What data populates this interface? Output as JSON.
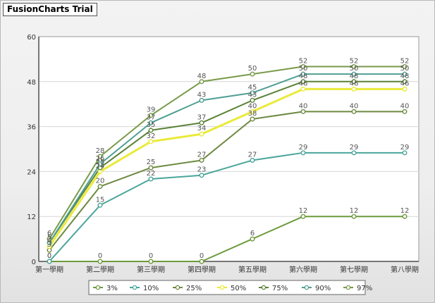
{
  "watermark": "FusionCharts Trial",
  "colors": {
    "plot_bg": "#ffffff",
    "grid": "#d6d6d6",
    "axis": "#777777",
    "highlight_series": "#e8e840"
  },
  "chart_data": {
    "type": "line",
    "title": "",
    "xlabel": "",
    "ylabel": "",
    "ylim": [
      0,
      60
    ],
    "y_ticks": [
      0,
      12,
      24,
      36,
      48,
      60
    ],
    "grid": true,
    "legend_position": "bottom",
    "categories": [
      "第一學期",
      "第二學期",
      "第三學期",
      "第四學期",
      "第五學期",
      "第六學期",
      "第七學期",
      "第八學期"
    ],
    "series": [
      {
        "name": "3%",
        "color": "#6e9a3c",
        "values": [
          0,
          0,
          0,
          0,
          6,
          12,
          12,
          12
        ]
      },
      {
        "name": "10%",
        "color": "#4aa59a",
        "values": [
          0,
          15,
          22,
          23,
          27,
          29,
          29,
          29
        ]
      },
      {
        "name": "25%",
        "color": "#6e8a40",
        "values": [
          3,
          20,
          25,
          27,
          38,
          40,
          40,
          40
        ]
      },
      {
        "name": "50%",
        "color": "#eaea3a",
        "values": [
          4,
          24,
          32,
          34,
          40,
          46,
          46,
          46
        ]
      },
      {
        "name": "75%",
        "color": "#5a8236",
        "values": [
          5,
          25,
          35,
          37,
          43,
          48,
          48,
          48
        ]
      },
      {
        "name": "90%",
        "color": "#4f9f93",
        "values": [
          5,
          26,
          37,
          43,
          45,
          50,
          50,
          50
        ]
      },
      {
        "name": "97%",
        "color": "#789a48",
        "values": [
          6,
          28,
          39,
          48,
          50,
          52,
          52,
          52
        ]
      }
    ]
  }
}
